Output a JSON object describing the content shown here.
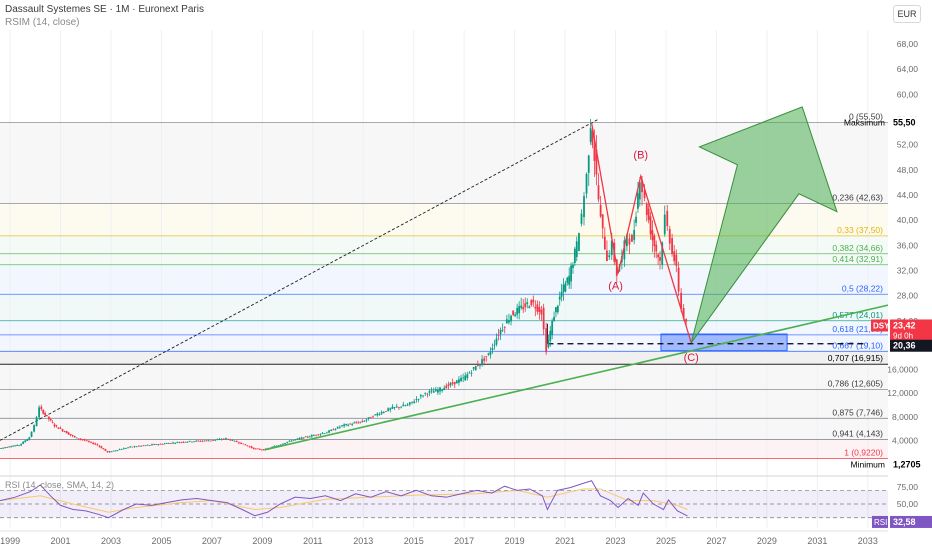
{
  "header": {
    "title": "Dassault Systemes SE · 1M · Euronext Paris",
    "subtitle": "RSIM (14, close)",
    "currency": "EUR"
  },
  "chart_data": {
    "type": "candlestick",
    "symbol": "DSY",
    "x_ticks": [
      "1999",
      "2001",
      "2003",
      "2005",
      "2007",
      "2009",
      "2011",
      "2013",
      "2015",
      "2017",
      "2019",
      "2021",
      "2023",
      "2025",
      "2027",
      "2029",
      "2031",
      "2033"
    ],
    "x_range": [
      1998.6,
      2033.8
    ],
    "y_ticks": [
      "0,0000",
      "4,0000",
      "8,0000",
      "12,0000",
      "16,0000",
      "20,00",
      "24,00",
      "28,00",
      "32,00",
      "36,00",
      "40,00",
      "44,00",
      "48,00",
      "52,00",
      "56,00",
      "60,00",
      "64,00",
      "68,00"
    ],
    "y_tick_values": [
      0,
      4,
      8,
      12,
      16,
      20,
      24,
      28,
      32,
      36,
      40,
      44,
      48,
      52,
      56,
      60,
      64,
      68
    ],
    "y_range": [
      -1,
      70
    ],
    "price_series": [
      [
        1998.6,
        2.6
      ],
      [
        1999.0,
        3.0
      ],
      [
        1999.4,
        3.2
      ],
      [
        1999.8,
        4.5
      ],
      [
        2000.0,
        6.5
      ],
      [
        2000.2,
        9.5
      ],
      [
        2000.5,
        8.0
      ],
      [
        2000.8,
        6.5
      ],
      [
        2001.2,
        5.5
      ],
      [
        2001.6,
        4.5
      ],
      [
        2002.0,
        4.0
      ],
      [
        2002.5,
        3.2
      ],
      [
        2002.9,
        2.0
      ],
      [
        2003.3,
        2.4
      ],
      [
        2003.8,
        2.9
      ],
      [
        2004.5,
        3.2
      ],
      [
        2005.0,
        3.4
      ],
      [
        2006.0,
        3.8
      ],
      [
        2007.0,
        4.0
      ],
      [
        2007.6,
        4.3
      ],
      [
        2008.2,
        3.5
      ],
      [
        2008.7,
        2.6
      ],
      [
        2009.1,
        2.4
      ],
      [
        2009.6,
        3.1
      ],
      [
        2010.2,
        4.0
      ],
      [
        2011.0,
        4.8
      ],
      [
        2011.6,
        5.4
      ],
      [
        2012.2,
        6.5
      ],
      [
        2013.0,
        7.2
      ],
      [
        2013.6,
        8.5
      ],
      [
        2014.2,
        9.5
      ],
      [
        2014.8,
        10.0
      ],
      [
        2015.5,
        12.0
      ],
      [
        2016.0,
        12.5
      ],
      [
        2016.5,
        13.5
      ],
      [
        2017.0,
        14.5
      ],
      [
        2017.5,
        16.5
      ],
      [
        2018.0,
        18.5
      ],
      [
        2018.4,
        22.0
      ],
      [
        2018.9,
        25.0
      ],
      [
        2019.3,
        26.0
      ],
      [
        2019.7,
        27.0
      ],
      [
        2020.1,
        25.5
      ],
      [
        2020.3,
        19.5
      ],
      [
        2020.6,
        25.0
      ],
      [
        2020.9,
        28.5
      ],
      [
        2021.2,
        31.0
      ],
      [
        2021.5,
        36.0
      ],
      [
        2021.7,
        41.0
      ],
      [
        2021.9,
        47.0
      ],
      [
        2022.05,
        55.5
      ],
      [
        2022.2,
        50.0
      ],
      [
        2022.45,
        40.0
      ],
      [
        2022.7,
        34.0
      ],
      [
        2022.9,
        36.0
      ],
      [
        2023.1,
        31.5
      ],
      [
        2023.3,
        34.0
      ],
      [
        2023.5,
        38.0
      ],
      [
        2023.7,
        36.0
      ],
      [
        2024.0,
        47.0
      ],
      [
        2024.2,
        43.0
      ],
      [
        2024.5,
        37.0
      ],
      [
        2024.8,
        33.5
      ],
      [
        2025.0,
        40.5
      ],
      [
        2025.2,
        37.0
      ],
      [
        2025.45,
        32.0
      ],
      [
        2025.65,
        26.0
      ],
      [
        2025.85,
        23.4
      ]
    ],
    "last_price": "23,42",
    "last_price_note": "9d 0h",
    "crosshair_price": "20,36",
    "fibonacci_levels": [
      {
        "label": "0 (55,50)",
        "value": 55.5,
        "color": "#787b86"
      },
      {
        "label": "0,236 (42,63)",
        "value": 42.63,
        "color": "#787b86"
      },
      {
        "label": "0,33 (37,50)",
        "value": 37.5,
        "color": "#e3b505"
      },
      {
        "label": "0,382 (34,66)",
        "value": 34.66,
        "color": "#4caf50"
      },
      {
        "label": "0,414 (32,91)",
        "value": 32.91,
        "color": "#4caf50"
      },
      {
        "label": "0,5 (28,22)",
        "value": 28.22,
        "color": "#2962ff"
      },
      {
        "label": "0,577 (24,01)",
        "value": 24.01,
        "color": "#089981"
      },
      {
        "label": "0,618 (21,77)",
        "value": 21.77,
        "color": "#2962ff"
      },
      {
        "label": "0,667 (19,10)",
        "value": 19.1,
        "color": "#2962ff"
      },
      {
        "label": "0,707 (16,915)",
        "value": 16.915,
        "color": "#000000"
      },
      {
        "label": "0,786 (12,605)",
        "value": 12.605,
        "color": "#787b86"
      },
      {
        "label": "0,875 (7,746)",
        "value": 7.746,
        "color": "#787b86"
      },
      {
        "label": "0,941 (4,143)",
        "value": 4.143,
        "color": "#787b86"
      },
      {
        "label": "1 (0,9220)",
        "value": 0.922,
        "color": "#f23645"
      }
    ],
    "max_label": "Maksimum",
    "max_value": "55,50",
    "min_label": "Minimum",
    "min_value": "1,2705",
    "wave_labels": [
      {
        "label": "(B)",
        "x": 2024.0,
        "y": 49.8
      },
      {
        "label": "(A)",
        "x": 2023.0,
        "y": 29.0
      },
      {
        "label": "(C)",
        "x": 2026.0,
        "y": 17.5
      }
    ],
    "wave_path": [
      [
        2022.05,
        55.5
      ],
      [
        2023.1,
        31.5
      ],
      [
        2024.0,
        47.0
      ],
      [
        2026.0,
        20.5
      ]
    ],
    "dotted_trendline": [
      [
        1998.6,
        4.0
      ],
      [
        2022.3,
        56.0
      ]
    ],
    "green_trendline": [
      [
        2009.1,
        2.4
      ],
      [
        2033.8,
        26.5
      ]
    ],
    "dashed_support": {
      "value": 20.36,
      "x_start": 2020.3,
      "x_end": 2033.0
    },
    "support_box": {
      "x1": 2024.8,
      "x2": 2029.8,
      "y1": 19.2,
      "y2": 21.9
    },
    "projection_arrow": {
      "from": [
        2026.0,
        20.5
      ],
      "to": [
        2030.4,
        58.0
      ]
    },
    "rsi": {
      "label": "RSI (14, close, SMA, 14, 2)",
      "axis_ticks": [
        "25,00",
        "50,00",
        "75,00"
      ],
      "axis_values": [
        25,
        50,
        75
      ],
      "range": [
        15,
        88
      ],
      "badge_label": "RSI",
      "last_value": "32,58",
      "series": [
        [
          1998.6,
          55
        ],
        [
          1999.2,
          60
        ],
        [
          1999.8,
          68
        ],
        [
          2000.2,
          78
        ],
        [
          2000.6,
          62
        ],
        [
          2001.0,
          48
        ],
        [
          2001.5,
          42
        ],
        [
          2002.0,
          40
        ],
        [
          2002.5,
          35
        ],
        [
          2002.9,
          30
        ],
        [
          2003.5,
          42
        ],
        [
          2004.0,
          50
        ],
        [
          2004.6,
          48
        ],
        [
          2005.2,
          52
        ],
        [
          2005.8,
          56
        ],
        [
          2006.4,
          58
        ],
        [
          2007.0,
          55
        ],
        [
          2007.6,
          52
        ],
        [
          2008.2,
          42
        ],
        [
          2008.7,
          33
        ],
        [
          2009.2,
          38
        ],
        [
          2009.7,
          50
        ],
        [
          2010.3,
          60
        ],
        [
          2010.9,
          58
        ],
        [
          2011.5,
          62
        ],
        [
          2012.1,
          55
        ],
        [
          2012.7,
          65
        ],
        [
          2013.3,
          60
        ],
        [
          2013.9,
          68
        ],
        [
          2014.5,
          62
        ],
        [
          2015.1,
          70
        ],
        [
          2015.7,
          62
        ],
        [
          2016.3,
          60
        ],
        [
          2016.9,
          65
        ],
        [
          2017.5,
          70
        ],
        [
          2018.1,
          66
        ],
        [
          2018.6,
          76
        ],
        [
          2019.1,
          70
        ],
        [
          2019.6,
          72
        ],
        [
          2020.1,
          62
        ],
        [
          2020.3,
          42
        ],
        [
          2020.7,
          70
        ],
        [
          2021.2,
          74
        ],
        [
          2021.7,
          80
        ],
        [
          2022.05,
          84
        ],
        [
          2022.4,
          62
        ],
        [
          2022.8,
          55
        ],
        [
          2023.1,
          45
        ],
        [
          2023.5,
          58
        ],
        [
          2023.9,
          48
        ],
        [
          2024.1,
          66
        ],
        [
          2024.5,
          50
        ],
        [
          2024.9,
          42
        ],
        [
          2025.1,
          56
        ],
        [
          2025.45,
          40
        ],
        [
          2025.85,
          32.6
        ]
      ],
      "ma_series": [
        [
          1998.6,
          55
        ],
        [
          2000.2,
          62
        ],
        [
          2001.5,
          50
        ],
        [
          2002.9,
          38
        ],
        [
          2004.0,
          45
        ],
        [
          2005.8,
          52
        ],
        [
          2007.0,
          55
        ],
        [
          2008.7,
          42
        ],
        [
          2009.7,
          45
        ],
        [
          2011.5,
          57
        ],
        [
          2013.3,
          60
        ],
        [
          2015.1,
          63
        ],
        [
          2017.5,
          65
        ],
        [
          2019.1,
          70
        ],
        [
          2020.3,
          60
        ],
        [
          2021.7,
          72
        ],
        [
          2022.4,
          72
        ],
        [
          2023.5,
          55
        ],
        [
          2024.5,
          55
        ],
        [
          2025.45,
          48
        ],
        [
          2025.85,
          42
        ]
      ]
    }
  }
}
